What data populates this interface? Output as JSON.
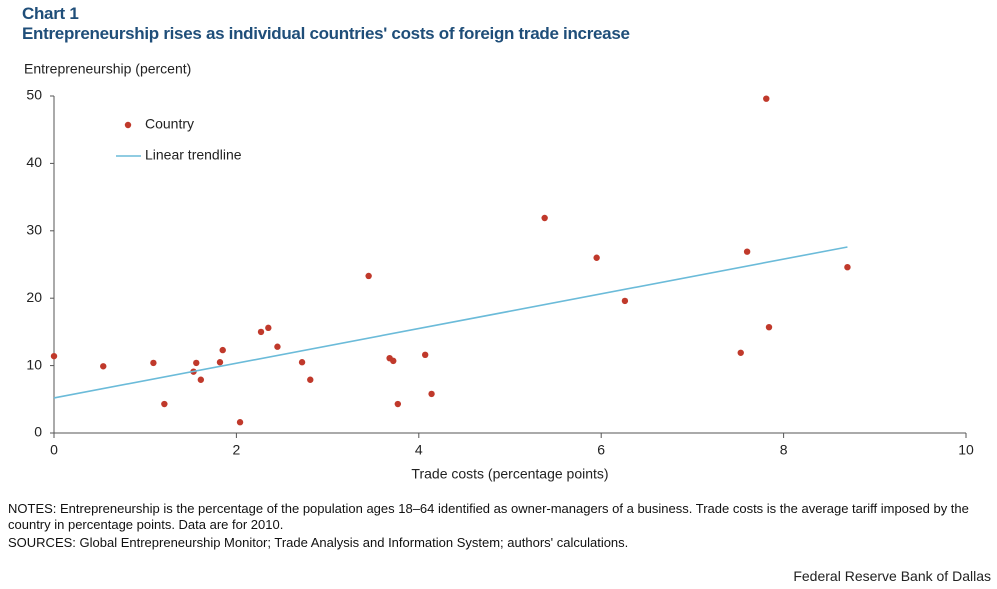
{
  "chart_data": {
    "type": "scatter",
    "title": "Chart 1",
    "subtitle": "Entrepreneurship rises as individual countries' costs of foreign trade increase",
    "y_label": "Entrepreneurship  (percent)",
    "x_label": "Trade costs (percentage points)",
    "series": [
      {
        "name": "Country",
        "type": "scatter",
        "color": "#c0392b",
        "x": [
          0,
          0.54,
          1.09,
          1.21,
          1.53,
          1.56,
          1.61,
          1.82,
          1.85,
          2.04,
          2.27,
          2.35,
          2.45,
          2.72,
          2.81,
          3.45,
          3.68,
          3.72,
          3.77,
          4.07,
          4.14,
          5.38,
          5.95,
          6.26,
          7.53,
          7.6,
          7.81,
          7.84,
          8.7
        ],
        "values": [
          11.4,
          9.9,
          10.4,
          4.3,
          9.1,
          10.4,
          7.9,
          10.5,
          12.3,
          1.6,
          15.0,
          15.6,
          12.8,
          10.5,
          7.9,
          23.3,
          11.1,
          10.7,
          4.3,
          11.6,
          5.8,
          31.9,
          26.0,
          19.6,
          11.9,
          26.9,
          49.6,
          15.7,
          24.6
        ]
      },
      {
        "name": "Linear trendline",
        "type": "line",
        "color": "#6bbbd9",
        "x": [
          0,
          8.7
        ],
        "values": [
          5.2,
          27.6
        ]
      }
    ],
    "xlim": [
      0,
      10
    ],
    "xticks": [
      0,
      2,
      4,
      6,
      8,
      10
    ],
    "ylim": [
      0,
      50
    ],
    "yticks": [
      0,
      10,
      20,
      30,
      40,
      50
    ],
    "grid": false,
    "legend": "upper left",
    "notes": "NOTES: Entrepreneurship is the percentage of the population ages 18–64 identified as owner-managers of a business. Trade costs is the average tariff imposed by the country in percentage points. Data are for 2010.",
    "sources": "SOURCES: Global Entrepreneurship Monitor; Trade Analysis and Information System; authors' calculations.",
    "credit": "Federal Reserve Bank of Dallas"
  }
}
